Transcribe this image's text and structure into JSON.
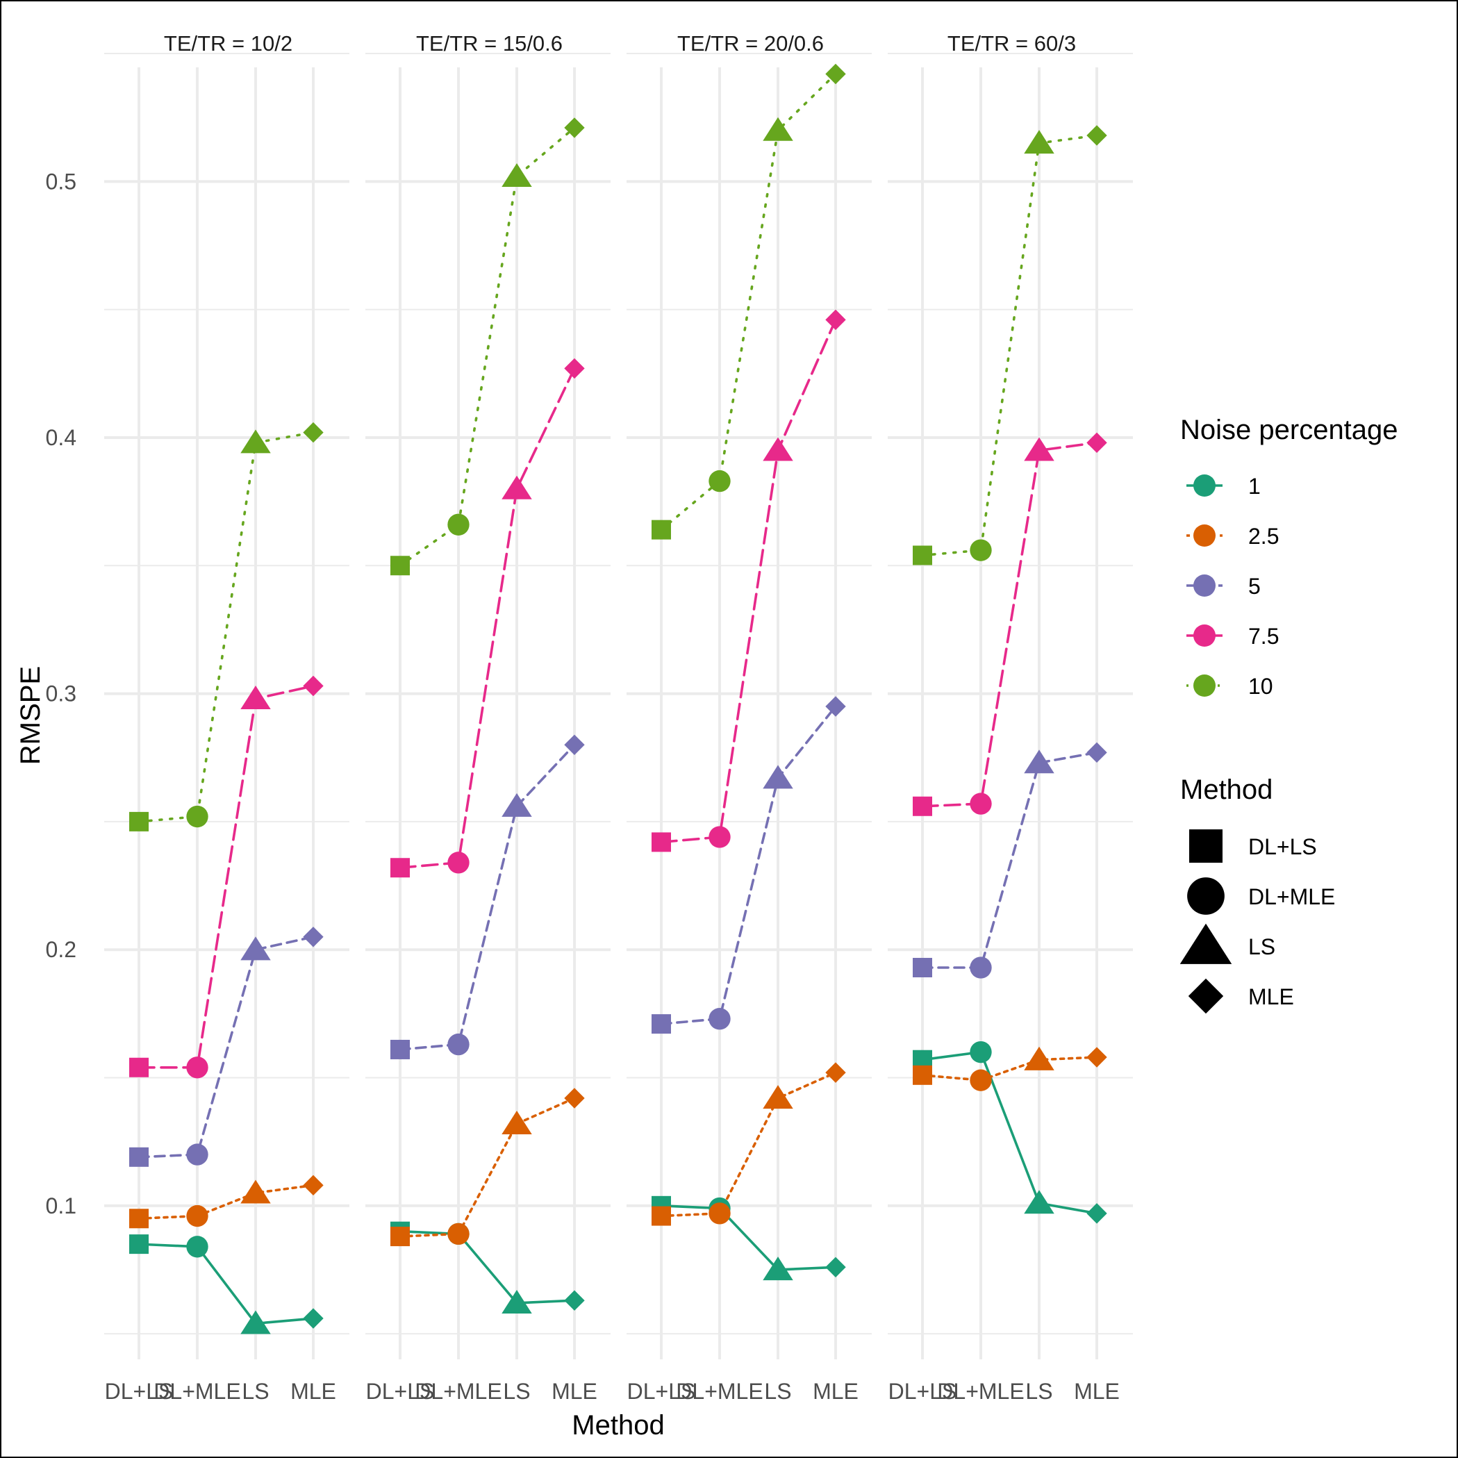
{
  "chart_data": {
    "type": "line",
    "xlabel": "Method",
    "ylabel": "RMSPE",
    "ylim": [
      0.04,
      0.55
    ],
    "y_ticks": [
      0.1,
      0.2,
      0.3,
      0.4,
      0.5
    ],
    "y_tick_labels": [
      "0.1",
      "0.2",
      "0.3",
      "0.4",
      "0.5"
    ],
    "grid": true,
    "legend_position": "right",
    "categories": [
      "DL+LS",
      "DL+MLE",
      "LS",
      "MLE"
    ],
    "panels": [
      {
        "title": "TE/TR = 10/2",
        "series": [
          {
            "name": "1",
            "values": [
              0.085,
              0.084,
              0.054,
              0.056
            ]
          },
          {
            "name": "2.5",
            "values": [
              0.095,
              0.096,
              0.105,
              0.108
            ]
          },
          {
            "name": "5",
            "values": [
              0.119,
              0.12,
              0.2,
              0.205
            ]
          },
          {
            "name": "7.5",
            "values": [
              0.154,
              0.154,
              0.298,
              0.303
            ]
          },
          {
            "name": "10",
            "values": [
              0.25,
              0.252,
              0.398,
              0.402
            ]
          }
        ]
      },
      {
        "title": "TE/TR = 15/0.6",
        "series": [
          {
            "name": "1",
            "values": [
              0.09,
              0.089,
              0.062,
              0.063
            ]
          },
          {
            "name": "2.5",
            "values": [
              0.088,
              0.089,
              0.132,
              0.142
            ]
          },
          {
            "name": "5",
            "values": [
              0.161,
              0.163,
              0.256,
              0.28
            ]
          },
          {
            "name": "7.5",
            "values": [
              0.232,
              0.234,
              0.38,
              0.427
            ]
          },
          {
            "name": "10",
            "values": [
              0.35,
              0.366,
              0.502,
              0.521
            ]
          }
        ]
      },
      {
        "title": "TE/TR = 20/0.6",
        "series": [
          {
            "name": "1",
            "values": [
              0.1,
              0.099,
              0.075,
              0.076
            ]
          },
          {
            "name": "2.5",
            "values": [
              0.096,
              0.097,
              0.142,
              0.152
            ]
          },
          {
            "name": "5",
            "values": [
              0.171,
              0.173,
              0.267,
              0.295
            ]
          },
          {
            "name": "7.5",
            "values": [
              0.242,
              0.244,
              0.395,
              0.446
            ]
          },
          {
            "name": "10",
            "values": [
              0.364,
              0.383,
              0.52,
              0.542
            ]
          }
        ]
      },
      {
        "title": "TE/TR = 60/3",
        "series": [
          {
            "name": "1",
            "values": [
              0.157,
              0.16,
              0.101,
              0.097
            ]
          },
          {
            "name": "2.5",
            "values": [
              0.151,
              0.149,
              0.157,
              0.158
            ]
          },
          {
            "name": "5",
            "values": [
              0.193,
              0.193,
              0.273,
              0.277
            ]
          },
          {
            "name": "7.5",
            "values": [
              0.256,
              0.257,
              0.395,
              0.398
            ]
          },
          {
            "name": "10",
            "values": [
              0.354,
              0.356,
              0.515,
              0.518
            ]
          }
        ]
      }
    ]
  },
  "legend": {
    "noise_title": "Noise percentage",
    "noise_items": [
      {
        "label": "1",
        "color": "#1b9e77",
        "dash": "solid"
      },
      {
        "label": "2.5",
        "color": "#d95f02",
        "dash": "dotted-short"
      },
      {
        "label": "5",
        "color": "#7570b3",
        "dash": "dashed"
      },
      {
        "label": "7.5",
        "color": "#e7298a",
        "dash": "long-dashed"
      },
      {
        "label": "10",
        "color": "#66a61e",
        "dash": "dotted"
      }
    ],
    "method_title": "Method",
    "method_items": [
      {
        "label": "DL+LS",
        "shape": "square"
      },
      {
        "label": "DL+MLE",
        "shape": "circle"
      },
      {
        "label": "LS",
        "shape": "triangle"
      },
      {
        "label": "MLE",
        "shape": "diamond"
      }
    ]
  }
}
